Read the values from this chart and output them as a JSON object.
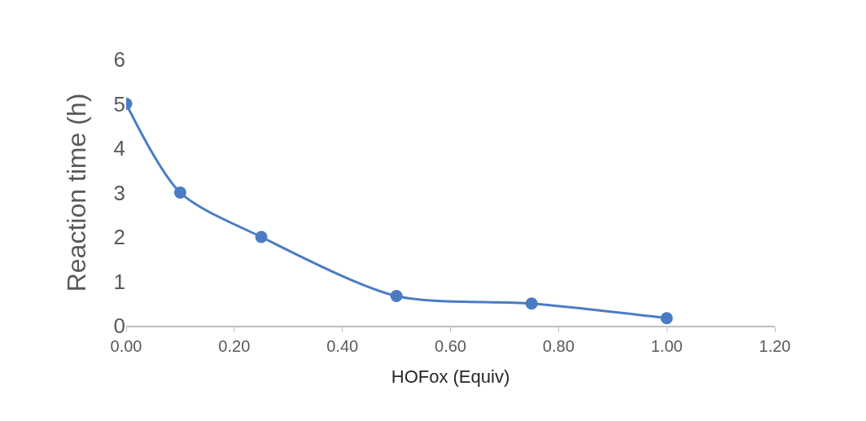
{
  "chart_data": {
    "type": "line",
    "xlabel": "HOFox (Equiv)",
    "ylabel": "Reaction time (h)",
    "x": [
      0,
      0.1,
      0.25,
      0.5,
      0.75,
      1.0
    ],
    "series": [
      {
        "color": "#4a7cc4",
        "values": [
          5,
          3,
          2,
          0.67,
          0.5,
          0.17
        ]
      }
    ],
    "xlim": [
      0,
      1.2
    ],
    "xticks": [
      {
        "value": 0,
        "label": "0.00"
      },
      {
        "value": 0.2,
        "label": "0.20"
      },
      {
        "value": 0.4,
        "label": "0.40"
      },
      {
        "value": 0.6,
        "label": "0.60"
      },
      {
        "value": 0.8,
        "label": "0.80"
      },
      {
        "value": 1.0,
        "label": "1.00"
      },
      {
        "value": 1.2,
        "label": "1.20"
      }
    ],
    "ylim": [
      0,
      6
    ],
    "yticks": [
      0,
      1,
      2,
      3,
      4,
      5,
      6
    ],
    "marker": "circle",
    "line_style": "solid"
  }
}
